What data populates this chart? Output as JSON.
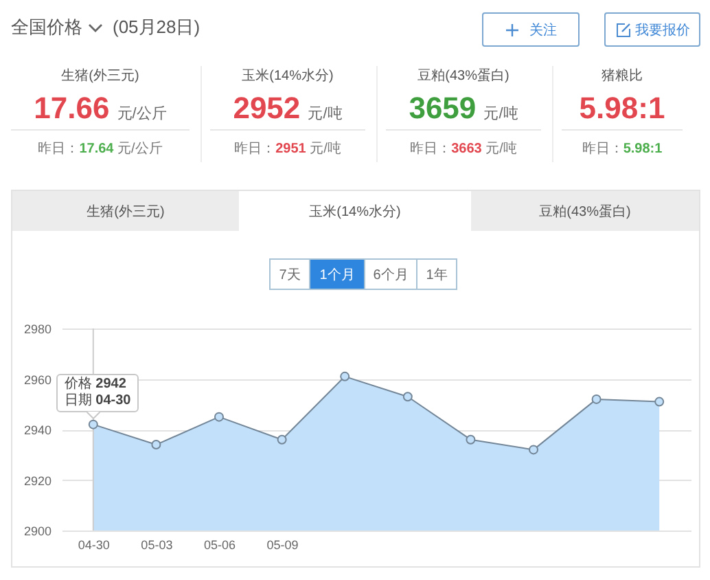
{
  "chart_data": [
    {
      "type": "other",
      "title": "全国价格",
      "subtitle": "(05月28日)",
      "annotations": [
        "关注",
        "我要报价",
        "生猪(外三元)",
        "17.66 元/公斤",
        "昨日：",
        "17.64 元/公斤",
        "玉米(14%水分)",
        "2952 元/吨",
        "昨日：",
        "2951 元/吨",
        "豆粕(43%蛋白)",
        "3659 元/吨",
        "昨日：",
        "3663 元/吨",
        "猪粮比",
        "5.98:1",
        "昨日：",
        "5.98:1"
      ],
      "colors": [
        "#e2474f",
        "#4cae4c",
        "#e2474f",
        "#e2474f",
        "#3f9f3f",
        "#e2474f",
        "#e2474f",
        "#4cae4c"
      ]
    },
    {
      "type": "area",
      "categories": [
        "04-30",
        "05-03",
        "05-06",
        "05-09",
        null,
        null,
        null,
        null,
        null,
        null
      ],
      "series": [
        {
          "color": "#c2e0fa",
          "values": [
            2942,
            2934,
            2945,
            2936,
            2961,
            2953,
            2936,
            2932,
            2952,
            2951
          ]
        }
      ],
      "ylim": [
        2900,
        2980
      ],
      "yticks": [
        2900,
        2920,
        2940,
        2960,
        2980
      ],
      "grid": "y",
      "marker": "circle",
      "ref_lines": [
        {
          "axis": "x",
          "value": "04-30",
          "color": "#cccccc"
        }
      ],
      "annotations": [
        "生猪(外三元)",
        "玉米(14%水分)",
        "豆粕(43%蛋白)",
        "7天",
        "1个月",
        "6个月",
        "1年",
        {
          "text": "价格 2942",
          "x": "04-30",
          "y": 2942
        },
        {
          "text": "日期 04-30",
          "x": "04-30",
          "y": 2942
        }
      ]
    }
  ]
}
